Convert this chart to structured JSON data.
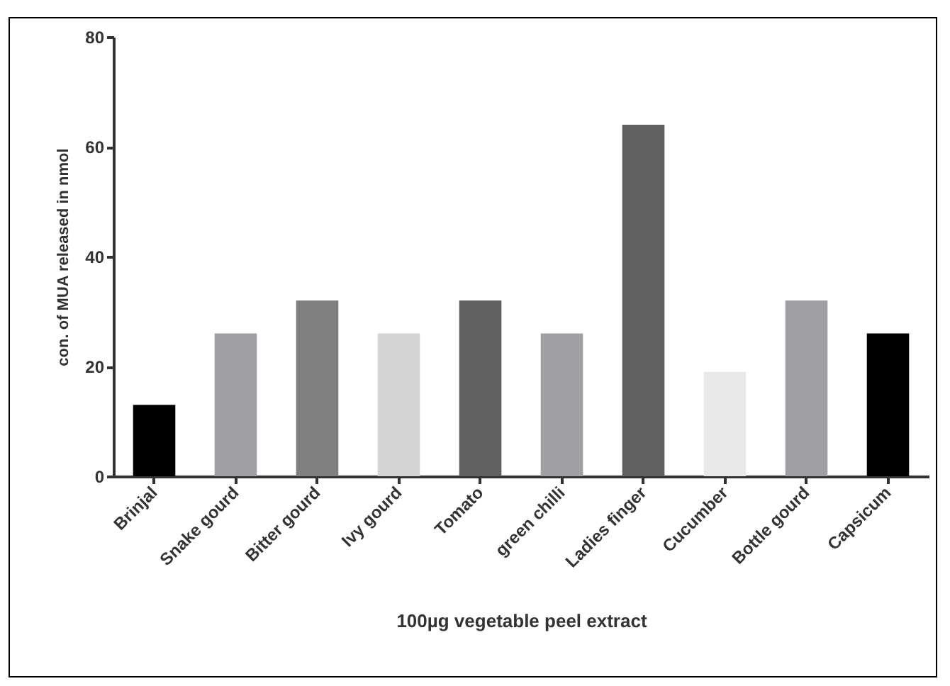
{
  "chart_data": {
    "type": "bar",
    "xlabel": "100µg vegetable peel extract",
    "ylabel": "con. of MUA released in nmol",
    "categories": [
      "Brinjal",
      "Snake gourd",
      "Bitter gourd",
      "Ivy gourd",
      "Tomato",
      "green chilli",
      "Ladies finger",
      "Cucumber",
      "Bottle gourd",
      "Capsicum"
    ],
    "values": [
      13,
      26,
      32,
      26,
      32,
      26,
      64,
      19,
      32,
      26
    ],
    "colors": [
      "#000000",
      "#a0a0a4",
      "#808080",
      "#d4d4d4",
      "#606060",
      "#a0a0a4",
      "#606060",
      "#e8e8e8",
      "#a0a0a4",
      "#000000"
    ],
    "ylim": [
      0,
      80
    ],
    "yticks": [
      0,
      20,
      40,
      60,
      80
    ]
  }
}
